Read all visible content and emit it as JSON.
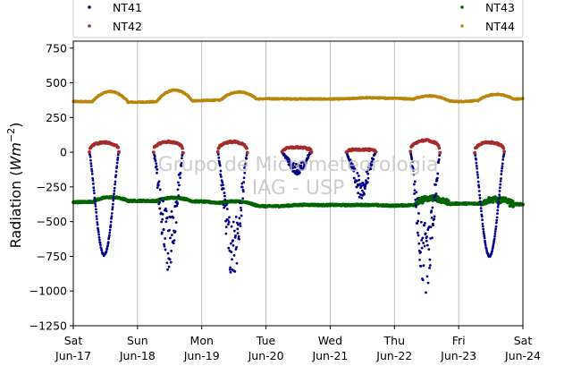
{
  "chart_data": {
    "type": "scatter",
    "title": "",
    "xlabel": "",
    "ylabel": "Radiation",
    "ylabel_unit_base": "Wm",
    "ylabel_unit_exp": "−2",
    "ylim": [
      -1250,
      800
    ],
    "yticks": [
      -1250,
      -1000,
      -750,
      -500,
      -250,
      0,
      250,
      500,
      750
    ],
    "ytick_labels": [
      "−1250",
      "−1000",
      "−750",
      "−500",
      "−250",
      "0",
      "250",
      "500",
      "750"
    ],
    "xlim": [
      "2017-06-17",
      "2017-06-24"
    ],
    "x_ticks": [
      {
        "day": "Sat",
        "date": "Jun-17"
      },
      {
        "day": "Sun",
        "date": "Jun-18"
      },
      {
        "day": "Mon",
        "date": "Jun-19"
      },
      {
        "day": "Tue",
        "date": "Jun-20"
      },
      {
        "day": "Wed",
        "date": "Jun-21"
      },
      {
        "day": "Thu",
        "date": "Jun-22"
      },
      {
        "day": "Fri",
        "date": "Jun-23"
      },
      {
        "day": "Sat",
        "date": "Jun-24"
      }
    ],
    "grid": "vertical",
    "legend_placement": "top",
    "watermark": [
      "Grupo de Micrometeorologia",
      "IAG - USP"
    ],
    "series": [
      {
        "name": "NT41",
        "color": "#00008b",
        "daily": [
          {
            "min": -740,
            "noisy": false
          },
          {
            "min": -770,
            "noisy": true
          },
          {
            "min": -850,
            "noisy": true
          },
          {
            "min": -150,
            "noisy": true
          },
          {
            "min": -300,
            "noisy": true
          },
          {
            "min": -920,
            "noisy": true
          },
          {
            "min": -750,
            "noisy": false
          }
        ]
      },
      {
        "name": "NT42",
        "color": "#a52a2a",
        "daily": [
          {
            "peak": 70
          },
          {
            "peak": 75
          },
          {
            "peak": 75
          },
          {
            "peak": 35
          },
          {
            "peak": 20
          },
          {
            "peak": 85
          },
          {
            "peak": 70
          }
        ]
      },
      {
        "name": "NT43",
        "color": "#006400",
        "night_level": [
          -360,
          -350,
          -355,
          -390,
          -380,
          -385,
          -370,
          -375
        ],
        "day_bump": [
          30,
          25,
          20,
          5,
          3,
          45,
          30
        ]
      },
      {
        "name": "NT44",
        "color": "#b8860b",
        "night_level": [
          365,
          360,
          372,
          385,
          383,
          390,
          365,
          385
        ],
        "day_bump": [
          75,
          80,
          55,
          0,
          5,
          30,
          40
        ]
      }
    ]
  }
}
